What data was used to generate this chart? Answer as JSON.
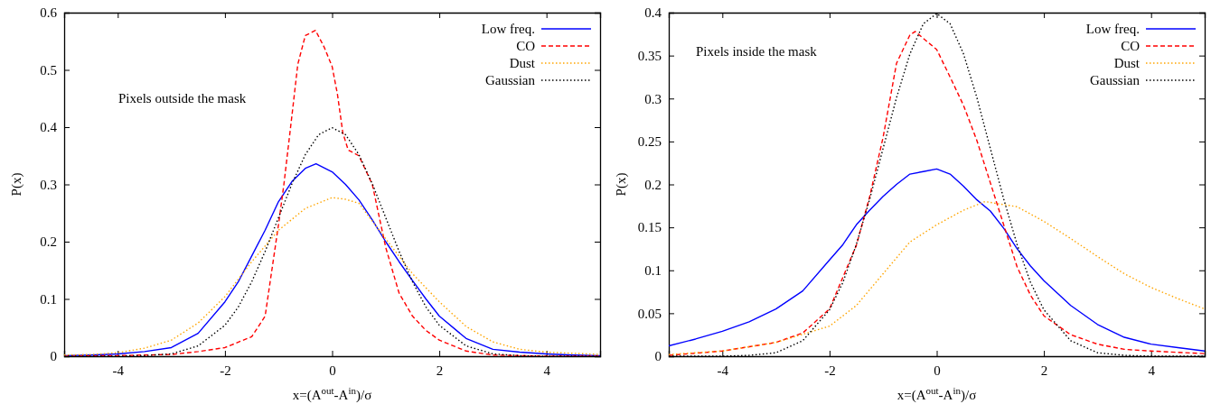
{
  "chart_data": [
    {
      "type": "line",
      "xlabel": "x=(A$^{out}$-A$^{in}$)/σ",
      "ylabel": "P(x)",
      "annotations": [
        "Pixels outside the mask"
      ],
      "xlim": [
        -5,
        5
      ],
      "xticks": [
        -4,
        -2,
        0,
        2,
        4
      ],
      "ylim": [
        0,
        0.6
      ],
      "yticks": [
        0,
        0.1,
        0.2,
        0.3,
        0.4,
        0.5,
        0.6
      ],
      "legend": "top right",
      "series": [
        {
          "name": "Low freq.",
          "color": "#0000ff",
          "line_style": "solid",
          "x": [
            -5,
            -4.5,
            -4,
            -3.5,
            -3,
            -2.5,
            -2,
            -1.75,
            -1.5,
            -1.25,
            -1,
            -0.75,
            -0.5,
            -0.3,
            0,
            0.25,
            0.5,
            0.75,
            1,
            1.25,
            1.5,
            1.75,
            2,
            2.5,
            3,
            3.5,
            4,
            4.5,
            5
          ],
          "values": [
            0.001,
            0.002,
            0.004,
            0.008,
            0.015,
            0.04,
            0.095,
            0.13,
            0.175,
            0.22,
            0.27,
            0.305,
            0.328,
            0.336,
            0.322,
            0.3,
            0.273,
            0.238,
            0.2,
            0.165,
            0.132,
            0.1,
            0.07,
            0.031,
            0.012,
            0.007,
            0.004,
            0.002,
            0.001
          ]
        },
        {
          "name": "CO",
          "type": "line",
          "color": "#ff0000",
          "line_style": "dashed",
          "x": [
            -5,
            -4,
            -3,
            -2.5,
            -2,
            -1.5,
            -1.25,
            -1,
            -0.9,
            -0.75,
            -0.64,
            -0.5,
            -0.31,
            -0.15,
            0,
            0.1,
            0.2,
            0.3,
            0.5,
            0.75,
            1,
            1.25,
            1.5,
            1.75,
            2,
            2.5,
            3,
            4,
            5
          ],
          "values": [
            0,
            0.001,
            0.003,
            0.008,
            0.015,
            0.034,
            0.07,
            0.23,
            0.3,
            0.42,
            0.51,
            0.56,
            0.569,
            0.54,
            0.506,
            0.457,
            0.39,
            0.36,
            0.35,
            0.3,
            0.19,
            0.11,
            0.07,
            0.045,
            0.028,
            0.009,
            0.002,
            0,
            0
          ]
        },
        {
          "name": "Dust",
          "type": "line",
          "color": "#ffa500",
          "line_style": "dotted",
          "x": [
            -5,
            -4.5,
            -4,
            -3.5,
            -3,
            -2.5,
            -2,
            -1.5,
            -1,
            -0.5,
            0,
            0.25,
            0.5,
            1,
            1.5,
            2,
            2.5,
            3,
            3.5,
            4,
            4.5,
            5
          ],
          "values": [
            0.002,
            0.003,
            0.006,
            0.014,
            0.028,
            0.058,
            0.104,
            0.165,
            0.22,
            0.258,
            0.277,
            0.274,
            0.267,
            0.205,
            0.144,
            0.095,
            0.052,
            0.025,
            0.012,
            0.007,
            0.005,
            0.003
          ]
        },
        {
          "name": "Gaussian",
          "type": "line",
          "color": "#000000",
          "line_style": "dotted",
          "x": [
            -5,
            -4,
            -3.5,
            -3,
            -2.5,
            -2,
            -1.75,
            -1.5,
            -1.25,
            -1,
            -0.75,
            -0.5,
            -0.25,
            0,
            0.25,
            0.5,
            0.75,
            1,
            1.25,
            1.5,
            1.75,
            2,
            2.5,
            3,
            3.5,
            4,
            5
          ],
          "values": [
            0,
            0,
            0.001,
            0.004,
            0.018,
            0.054,
            0.086,
            0.13,
            0.183,
            0.242,
            0.301,
            0.352,
            0.387,
            0.399,
            0.387,
            0.352,
            0.301,
            0.242,
            0.183,
            0.13,
            0.086,
            0.054,
            0.018,
            0.004,
            0.001,
            0,
            0
          ]
        }
      ]
    },
    {
      "type": "line",
      "xlabel": "x=(A$^{out}$-A$^{in}$)/σ",
      "ylabel": "P(x)",
      "annotations": [
        "Pixels inside the mask"
      ],
      "xlim": [
        -5,
        5
      ],
      "xticks": [
        -4,
        -2,
        0,
        2,
        4
      ],
      "ylim": [
        0,
        0.4
      ],
      "yticks": [
        0,
        0.05,
        0.1,
        0.15,
        0.2,
        0.25,
        0.3,
        0.35,
        0.4
      ],
      "legend": "top right",
      "series": [
        {
          "name": "Low freq.",
          "color": "#0000ff",
          "line_style": "solid",
          "x": [
            -5,
            -4.5,
            -4,
            -3.5,
            -3,
            -2.5,
            -2,
            -1.75,
            -1.5,
            -1.25,
            -1,
            -0.75,
            -0.5,
            -0.25,
            0,
            0.25,
            0.5,
            0.75,
            1,
            1.25,
            1.5,
            1.75,
            2,
            2.5,
            3,
            3.5,
            4,
            4.5,
            5
          ],
          "values": [
            0.012,
            0.02,
            0.029,
            0.04,
            0.055,
            0.076,
            0.112,
            0.13,
            0.153,
            0.17,
            0.186,
            0.2,
            0.212,
            0.215,
            0.218,
            0.212,
            0.198,
            0.182,
            0.169,
            0.149,
            0.125,
            0.105,
            0.088,
            0.059,
            0.037,
            0.022,
            0.014,
            0.01,
            0.006
          ]
        },
        {
          "name": "CO",
          "type": "line",
          "color": "#ff0000",
          "line_style": "dashed",
          "x": [
            -5,
            -4,
            -3,
            -2.5,
            -2,
            -1.5,
            -1.25,
            -1,
            -0.75,
            -0.5,
            -0.4,
            -0.25,
            0,
            0.25,
            0.5,
            0.75,
            1,
            1.25,
            1.5,
            1.75,
            2,
            2.5,
            3,
            3.5,
            4,
            5
          ],
          "values": [
            0.001,
            0.006,
            0.016,
            0.027,
            0.055,
            0.129,
            0.186,
            0.255,
            0.341,
            0.374,
            0.378,
            0.37,
            0.357,
            0.325,
            0.292,
            0.251,
            0.202,
            0.153,
            0.104,
            0.071,
            0.047,
            0.025,
            0.014,
            0.008,
            0.006,
            0.003
          ]
        },
        {
          "name": "Dust",
          "type": "line",
          "color": "#ffa500",
          "line_style": "dotted",
          "x": [
            -5,
            -4,
            -3,
            -2,
            -1.5,
            -1,
            -0.5,
            0,
            0.5,
            0.9,
            1.5,
            2,
            2.5,
            3,
            3.5,
            4,
            4.5,
            5
          ],
          "values": [
            0.002,
            0.006,
            0.016,
            0.035,
            0.059,
            0.096,
            0.133,
            0.153,
            0.17,
            0.18,
            0.174,
            0.157,
            0.137,
            0.116,
            0.096,
            0.08,
            0.067,
            0.055
          ]
        },
        {
          "name": "Gaussian",
          "type": "line",
          "color": "#000000",
          "line_style": "dotted",
          "x": [
            -5,
            -4,
            -3.5,
            -3,
            -2.5,
            -2,
            -1.75,
            -1.5,
            -1.25,
            -1,
            -0.75,
            -0.5,
            -0.25,
            0,
            0.25,
            0.5,
            0.75,
            1,
            1.25,
            1.5,
            1.75,
            2,
            2.5,
            3,
            3.5,
            4,
            5
          ],
          "values": [
            0,
            0,
            0.001,
            0.004,
            0.018,
            0.054,
            0.086,
            0.13,
            0.183,
            0.242,
            0.301,
            0.352,
            0.387,
            0.399,
            0.387,
            0.352,
            0.301,
            0.242,
            0.183,
            0.13,
            0.086,
            0.054,
            0.018,
            0.004,
            0.001,
            0,
            0
          ]
        }
      ]
    }
  ]
}
